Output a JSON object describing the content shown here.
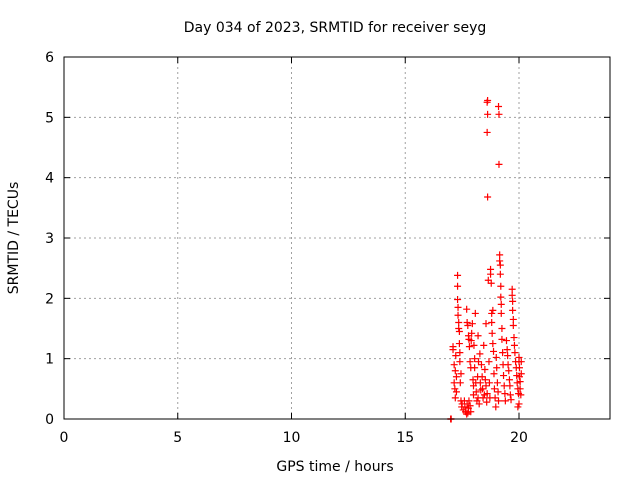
{
  "chart_data": {
    "type": "scatter",
    "title": "Day 034 of 2023, SRMTID for receiver seyg",
    "xlabel": "GPS time / hours",
    "ylabel": "SRMTID / TECUs",
    "xlim": [
      0,
      24
    ],
    "ylim": [
      0,
      6
    ],
    "xticks": [
      "0",
      "5",
      "10",
      "15",
      "20"
    ],
    "yticks": [
      "0",
      "1",
      "2",
      "3",
      "4",
      "5",
      "6"
    ],
    "grid": true,
    "marker": "plus",
    "color": "#ff0000",
    "series": [
      {
        "name": "SRMTID",
        "points": [
          [
            17.0,
            0.0
          ],
          [
            17.0,
            0.0
          ],
          [
            17.02,
            0.0
          ],
          [
            17.1,
            1.2
          ],
          [
            17.1,
            1.15
          ],
          [
            17.15,
            0.9
          ],
          [
            17.15,
            0.6
          ],
          [
            17.18,
            0.5
          ],
          [
            17.2,
            0.35
          ],
          [
            17.2,
            0.8
          ],
          [
            17.22,
            1.05
          ],
          [
            17.25,
            0.7
          ],
          [
            17.25,
            0.45
          ],
          [
            17.3,
            2.38
          ],
          [
            17.3,
            2.2
          ],
          [
            17.3,
            1.98
          ],
          [
            17.32,
            1.85
          ],
          [
            17.32,
            1.72
          ],
          [
            17.35,
            1.6
          ],
          [
            17.35,
            1.5
          ],
          [
            17.38,
            1.45
          ],
          [
            17.38,
            1.25
          ],
          [
            17.4,
            1.1
          ],
          [
            17.4,
            0.95
          ],
          [
            17.42,
            0.6
          ],
          [
            17.45,
            0.75
          ],
          [
            17.45,
            0.3
          ],
          [
            17.48,
            0.2
          ],
          [
            17.5,
            0.25
          ],
          [
            17.55,
            0.15
          ],
          [
            17.6,
            0.3
          ],
          [
            17.62,
            0.2
          ],
          [
            17.65,
            0.12
          ],
          [
            17.7,
            0.08
          ],
          [
            17.72,
            0.25
          ],
          [
            17.75,
            0.1
          ],
          [
            17.78,
            0.18
          ],
          [
            17.8,
            0.3
          ],
          [
            17.85,
            0.22
          ],
          [
            17.88,
            0.12
          ],
          [
            17.7,
            1.82
          ],
          [
            17.72,
            1.6
          ],
          [
            17.75,
            1.55
          ],
          [
            17.78,
            1.38
          ],
          [
            17.8,
            1.32
          ],
          [
            17.82,
            1.2
          ],
          [
            17.85,
            0.95
          ],
          [
            17.88,
            0.85
          ],
          [
            17.9,
            1.3
          ],
          [
            17.92,
            1.42
          ],
          [
            17.95,
            1.58
          ],
          [
            17.98,
            0.65
          ],
          [
            18.0,
            0.55
          ],
          [
            18.0,
            0.4
          ],
          [
            18.02,
            1.22
          ],
          [
            18.05,
            1.0
          ],
          [
            18.05,
            0.85
          ],
          [
            18.08,
            1.75
          ],
          [
            18.1,
            0.6
          ],
          [
            18.12,
            0.45
          ],
          [
            18.15,
            0.3
          ],
          [
            18.18,
            0.7
          ],
          [
            18.2,
            1.38
          ],
          [
            18.2,
            0.35
          ],
          [
            18.22,
            0.95
          ],
          [
            18.25,
            0.25
          ],
          [
            18.28,
            1.08
          ],
          [
            18.3,
            0.6
          ],
          [
            18.32,
            0.48
          ],
          [
            18.35,
            0.9
          ],
          [
            18.38,
            0.7
          ],
          [
            18.4,
            0.5
          ],
          [
            18.42,
            0.35
          ],
          [
            18.45,
            1.22
          ],
          [
            18.48,
            0.4
          ],
          [
            18.5,
            0.82
          ],
          [
            18.52,
            0.65
          ],
          [
            18.55,
            0.55
          ],
          [
            18.55,
            1.58
          ],
          [
            18.58,
            0.28
          ],
          [
            18.6,
            0.42
          ],
          [
            18.6,
            5.25
          ],
          [
            18.62,
            5.28
          ],
          [
            18.62,
            5.05
          ],
          [
            18.6,
            4.75
          ],
          [
            18.62,
            3.68
          ],
          [
            18.65,
            2.3
          ],
          [
            18.68,
            0.95
          ],
          [
            18.7,
            0.6
          ],
          [
            18.72,
            0.35
          ],
          [
            18.75,
            2.48
          ],
          [
            18.75,
            2.4
          ],
          [
            18.78,
            2.25
          ],
          [
            18.8,
            1.75
          ],
          [
            18.8,
            1.6
          ],
          [
            18.82,
            1.42
          ],
          [
            18.85,
            1.8
          ],
          [
            18.85,
            1.25
          ],
          [
            18.88,
            1.12
          ],
          [
            18.9,
            0.75
          ],
          [
            18.92,
            0.5
          ],
          [
            18.95,
            0.35
          ],
          [
            18.98,
            0.2
          ],
          [
            19.0,
            1.02
          ],
          [
            19.02,
            0.85
          ],
          [
            19.05,
            0.6
          ],
          [
            19.08,
            0.45
          ],
          [
            19.1,
            0.3
          ],
          [
            19.1,
            5.18
          ],
          [
            19.12,
            5.05
          ],
          [
            19.12,
            4.22
          ],
          [
            19.15,
            2.72
          ],
          [
            19.15,
            2.62
          ],
          [
            19.18,
            2.55
          ],
          [
            19.18,
            2.4
          ],
          [
            19.2,
            2.2
          ],
          [
            19.2,
            2.02
          ],
          [
            19.22,
            1.9
          ],
          [
            19.22,
            1.75
          ],
          [
            19.25,
            1.5
          ],
          [
            19.25,
            1.32
          ],
          [
            19.28,
            1.1
          ],
          [
            19.3,
            0.9
          ],
          [
            19.32,
            0.72
          ],
          [
            19.35,
            0.55
          ],
          [
            19.38,
            0.42
          ],
          [
            19.4,
            0.3
          ],
          [
            19.45,
            1.3
          ],
          [
            19.48,
            1.15
          ],
          [
            19.5,
            1.05
          ],
          [
            19.52,
            0.9
          ],
          [
            19.55,
            0.8
          ],
          [
            19.58,
            0.65
          ],
          [
            19.6,
            0.55
          ],
          [
            19.62,
            0.4
          ],
          [
            19.65,
            0.32
          ],
          [
            19.7,
            2.15
          ],
          [
            19.7,
            2.05
          ],
          [
            19.72,
            1.95
          ],
          [
            19.72,
            1.8
          ],
          [
            19.75,
            1.65
          ],
          [
            19.75,
            1.55
          ],
          [
            19.78,
            1.35
          ],
          [
            19.8,
            1.22
          ],
          [
            19.82,
            1.1
          ],
          [
            19.85,
            0.95
          ],
          [
            19.88,
            0.85
          ],
          [
            19.9,
            0.72
          ],
          [
            19.92,
            0.6
          ],
          [
            19.95,
            0.5
          ],
          [
            19.98,
            0.42
          ],
          [
            20.0,
            1.02
          ],
          [
            20.0,
            0.95
          ],
          [
            20.02,
            0.85
          ],
          [
            20.02,
            0.7
          ],
          [
            20.05,
            0.62
          ],
          [
            20.05,
            0.5
          ],
          [
            20.08,
            0.4
          ],
          [
            20.1,
            0.95
          ],
          [
            20.1,
            0.75
          ],
          [
            19.95,
            0.2
          ],
          [
            20.0,
            0.25
          ]
        ]
      }
    ]
  }
}
